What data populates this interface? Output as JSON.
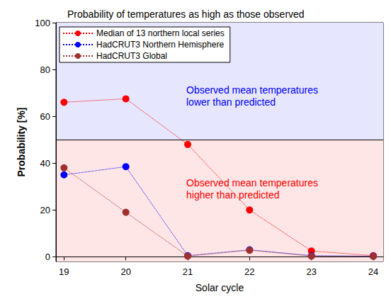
{
  "chart_data": {
    "type": "line",
    "title": "Probability of temperatures as high as those observed",
    "x_label": "Solar cycle",
    "y_label": "Probability [%]",
    "x": [
      19,
      20,
      21,
      22,
      23,
      24
    ],
    "xlim": [
      18.87,
      24.16
    ],
    "xticks": [
      19,
      20,
      21,
      22,
      23,
      24
    ],
    "ylim": [
      -2,
      100
    ],
    "yticks": [
      0,
      20,
      40,
      60,
      80,
      100
    ],
    "grid": true,
    "legend": "upper left",
    "marker": "circle",
    "line_style": "dotted",
    "series": [
      {
        "name": "Median of 13 northern local series",
        "color": "#ff0000",
        "values": [
          66,
          67.5,
          48,
          20,
          2.5,
          0.5
        ]
      },
      {
        "name": "HadCRUT3 Northern Hemisphere",
        "color": "#0000ff",
        "values": [
          35,
          38.5,
          0.5,
          3,
          0.5,
          0.3
        ]
      },
      {
        "name": "HadCRUT3 Global",
        "color": "#a03030",
        "values": [
          38,
          19,
          0.3,
          2.8,
          0.3,
          0.2
        ]
      }
    ],
    "bands": [
      {
        "from": 50,
        "to": 100,
        "color": "#e6e6ff"
      },
      {
        "from": -2,
        "to": 50,
        "color": "#ffe6e6"
      }
    ],
    "annotations": [
      {
        "text": "Observed mean temperatures\nlower than predicted",
        "color": "#0000ff"
      },
      {
        "text": "Observed mean temperatures\nhigher than predicted",
        "color": "#ff0000"
      }
    ]
  }
}
